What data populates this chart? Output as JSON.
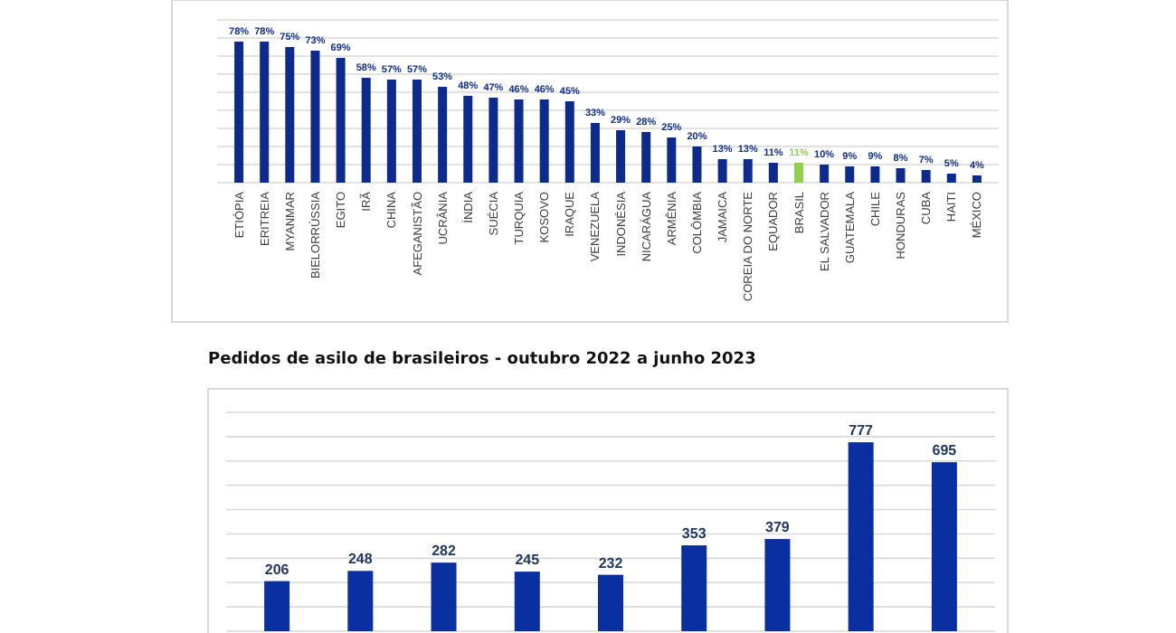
{
  "chart_data": [
    {
      "type": "bar",
      "categories": [
        "ETIÓPIA",
        "ERITREIA",
        "MYANMAR",
        "BIELORRÚSSIA",
        "EGITO",
        "IRÃ",
        "CHINA",
        "AFEGANISTÃO",
        "UCRÂNIA",
        "ÍNDIA",
        "SUÉCIA",
        "TURQUIA",
        "KOSOVO",
        "IRAQUE",
        "VENEZUELA",
        "INDONÉSIA",
        "NICARÁGUA",
        "ARMÊNIA",
        "COLÔMBIA",
        "JAMAICA",
        "COREIA DO NORTE",
        "EQUADOR",
        "BRASIL",
        "EL SALVADOR",
        "GUATEMALA",
        "CHILE",
        "HONDURAS",
        "CUBA",
        "HAITI",
        "MÉXICO"
      ],
      "values": [
        78,
        78,
        75,
        73,
        69,
        58,
        57,
        57,
        53,
        48,
        47,
        46,
        46,
        45,
        33,
        29,
        28,
        25,
        20,
        13,
        13,
        11,
        11,
        10,
        9,
        9,
        8,
        7,
        5,
        4
      ],
      "value_labels": [
        "78%",
        "78%",
        "75%",
        "73%",
        "69%",
        "58%",
        "57%",
        "57%",
        "53%",
        "48%",
        "47%",
        "46%",
        "46%",
        "45%",
        "33%",
        "29%",
        "28%",
        "25%",
        "20%",
        "13%",
        "13%",
        "11%",
        "11%",
        "10%",
        "9%",
        "9%",
        "8%",
        "7%",
        "5%",
        "4%"
      ],
      "colors": [
        "#0d2b8c",
        "#0d2b8c",
        "#0d2b8c",
        "#0d2b8c",
        "#0d2b8c",
        "#0d2b8c",
        "#0d2b8c",
        "#0d2b8c",
        "#0d2b8c",
        "#0d2b8c",
        "#0d2b8c",
        "#0d2b8c",
        "#0d2b8c",
        "#0d2b8c",
        "#0d2b8c",
        "#0d2b8c",
        "#0d2b8c",
        "#0d2b8c",
        "#0d2b8c",
        "#0d2b8c",
        "#0d2b8c",
        "#0d2b8c",
        "#92d050",
        "#0d2b8c",
        "#0d2b8c",
        "#0d2b8c",
        "#0d2b8c",
        "#0d2b8c",
        "#0d2b8c",
        "#0d2b8c"
      ],
      "ylim": [
        0,
        90
      ],
      "yticks": [
        {
          "value": 0,
          "label": null
        },
        {
          "value": 10,
          "label": null
        },
        {
          "value": 20,
          "label": null
        },
        {
          "value": 30,
          "label": null
        },
        {
          "value": 40,
          "label": null
        },
        {
          "value": 50,
          "label": null
        },
        {
          "value": 60,
          "label": null
        },
        {
          "value": 70,
          "label": null
        },
        {
          "value": 80,
          "label": null
        },
        {
          "value": 90,
          "label": null
        }
      ],
      "tick_labels": "x",
      "grid": "y"
    },
    {
      "type": "bar",
      "title": "Pedidos de asilo de brasileiros - outubro 2022 a junho 2023",
      "categories": [
        null,
        null,
        null,
        null,
        null,
        null,
        null,
        null,
        null
      ],
      "values": [
        206,
        248,
        282,
        245,
        232,
        353,
        379,
        777,
        695
      ],
      "color": "#0a2fa0",
      "data_labels": true,
      "ylim": [
        0,
        900
      ],
      "yticks": [
        {
          "value": 0,
          "label": null
        },
        {
          "value": 100,
          "label": null
        },
        {
          "value": 200,
          "label": null
        },
        {
          "value": 300,
          "label": null
        },
        {
          "value": 400,
          "label": null
        },
        {
          "value": 500,
          "label": null
        },
        {
          "value": 600,
          "label": null
        },
        {
          "value": 700,
          "label": null
        },
        {
          "value": 800,
          "label": null
        },
        {
          "value": 900,
          "label": null
        }
      ],
      "tick_labels": false,
      "grid": "y"
    }
  ]
}
